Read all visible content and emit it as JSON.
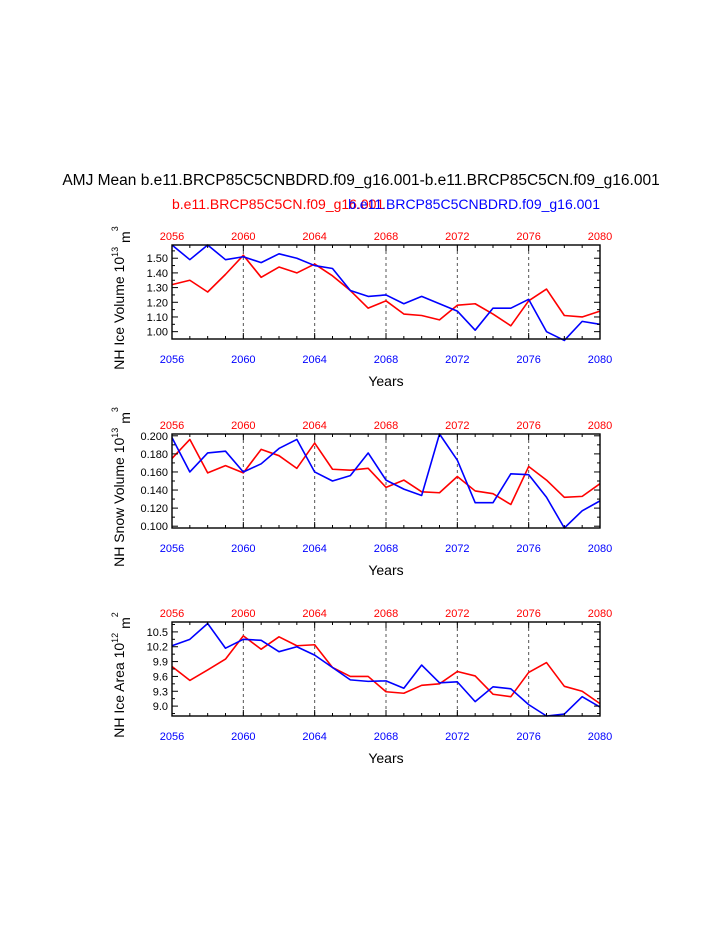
{
  "title": "AMJ Mean b.e11.BRCP85C5CNBDRD.f09_g16.001-b.e11.BRCP85C5CN.f09_g16.001",
  "legend": {
    "red_case": "b.e11.BRCP85C5CN.f09_g16.001",
    "blue_case": "b.e11.BRCP85C5CNBDRD.f09_g16.001"
  },
  "colors": {
    "red": "#ff0000",
    "blue": "#0000ff",
    "axis": "#000000",
    "grid": "#555555"
  },
  "chart_data": [
    {
      "type": "line",
      "ylabel": "NH Ice Volume 10",
      "ylabel_exp": "13",
      "ylabel_unit": "m",
      "ylabel_unit_exp": "3",
      "xlabel": "Years",
      "x": [
        2056,
        2057,
        2058,
        2059,
        2060,
        2061,
        2062,
        2063,
        2064,
        2065,
        2066,
        2067,
        2068,
        2069,
        2070,
        2071,
        2072,
        2073,
        2074,
        2075,
        2076,
        2077,
        2078,
        2079,
        2080
      ],
      "xlim": [
        2056,
        2080
      ],
      "ylim": [
        0.95,
        1.59
      ],
      "yticks": [
        1.0,
        1.1,
        1.2,
        1.3,
        1.4,
        1.5
      ],
      "ytick_labels": [
        "1.00",
        "1.10",
        "1.20",
        "1.30",
        "1.40",
        "1.50"
      ],
      "xticks": [
        2056,
        2060,
        2064,
        2068,
        2072,
        2076,
        2080
      ],
      "xtick_labels": [
        "2056",
        "2060",
        "2064",
        "2068",
        "2072",
        "2076",
        "2080"
      ],
      "grid_x": [
        2060,
        2064,
        2068,
        2072,
        2076
      ],
      "series": [
        {
          "name": "b.e11.BRCP85C5CN.f09_g16.001",
          "color": "red",
          "values": [
            1.32,
            1.35,
            1.27,
            1.39,
            1.52,
            1.37,
            1.44,
            1.4,
            1.46,
            1.38,
            1.28,
            1.16,
            1.21,
            1.12,
            1.11,
            1.08,
            1.18,
            1.19,
            1.12,
            1.04,
            1.21,
            1.29,
            1.11,
            1.1,
            1.14
          ]
        },
        {
          "name": "b.e11.BRCP85C5CNBDRD.f09_g16.001",
          "color": "blue",
          "values": [
            1.59,
            1.49,
            1.59,
            1.49,
            1.51,
            1.47,
            1.53,
            1.5,
            1.45,
            1.43,
            1.28,
            1.24,
            1.25,
            1.19,
            1.24,
            1.19,
            1.14,
            1.01,
            1.16,
            1.16,
            1.22,
            1.0,
            0.94,
            1.07,
            1.05
          ]
        }
      ]
    },
    {
      "type": "line",
      "ylabel": "NH Snow Volume 10",
      "ylabel_exp": "13",
      "ylabel_unit": "m",
      "ylabel_unit_exp": "3",
      "xlabel": "Years",
      "x": [
        2056,
        2057,
        2058,
        2059,
        2060,
        2061,
        2062,
        2063,
        2064,
        2065,
        2066,
        2067,
        2068,
        2069,
        2070,
        2071,
        2072,
        2073,
        2074,
        2075,
        2076,
        2077,
        2078,
        2079,
        2080
      ],
      "xlim": [
        2056,
        2080
      ],
      "ylim": [
        0.098,
        0.202
      ],
      "yticks": [
        0.1,
        0.12,
        0.14,
        0.16,
        0.18,
        0.2
      ],
      "ytick_labels": [
        "0.100",
        "0.120",
        "0.140",
        "0.160",
        "0.180",
        "0.200"
      ],
      "xticks": [
        2056,
        2060,
        2064,
        2068,
        2072,
        2076,
        2080
      ],
      "xtick_labels": [
        "2056",
        "2060",
        "2064",
        "2068",
        "2072",
        "2076",
        "2080"
      ],
      "grid_x": [
        2060,
        2064,
        2068,
        2072,
        2076
      ],
      "series": [
        {
          "name": "b.e11.BRCP85C5CN.f09_g16.001",
          "color": "red",
          "values": [
            0.175,
            0.196,
            0.159,
            0.167,
            0.159,
            0.185,
            0.178,
            0.164,
            0.192,
            0.163,
            0.162,
            0.164,
            0.143,
            0.151,
            0.138,
            0.137,
            0.155,
            0.139,
            0.136,
            0.124,
            0.166,
            0.151,
            0.132,
            0.133,
            0.147
          ]
        },
        {
          "name": "b.e11.BRCP85C5CNBDRD.f09_g16.001",
          "color": "blue",
          "values": [
            0.198,
            0.16,
            0.181,
            0.183,
            0.16,
            0.169,
            0.186,
            0.196,
            0.16,
            0.15,
            0.156,
            0.181,
            0.151,
            0.141,
            0.134,
            0.202,
            0.173,
            0.126,
            0.126,
            0.158,
            0.157,
            0.132,
            0.098,
            0.117,
            0.128
          ]
        }
      ]
    },
    {
      "type": "line",
      "ylabel": "NH Ice Area 10",
      "ylabel_exp": "12",
      "ylabel_unit": "m",
      "ylabel_unit_exp": "2",
      "xlabel": "Years",
      "x": [
        2056,
        2057,
        2058,
        2059,
        2060,
        2061,
        2062,
        2063,
        2064,
        2065,
        2066,
        2067,
        2068,
        2069,
        2070,
        2071,
        2072,
        2073,
        2074,
        2075,
        2076,
        2077,
        2078,
        2079,
        2080
      ],
      "xlim": [
        2056,
        2080
      ],
      "ylim": [
        8.8,
        10.7
      ],
      "yticks": [
        9.0,
        9.3,
        9.6,
        9.9,
        10.2,
        10.5
      ],
      "ytick_labels": [
        "9.0",
        "9.3",
        "9.6",
        "9.9",
        "10.2",
        "10.5"
      ],
      "xticks": [
        2056,
        2060,
        2064,
        2068,
        2072,
        2076,
        2080
      ],
      "xtick_labels": [
        "2056",
        "2060",
        "2064",
        "2068",
        "2072",
        "2076",
        "2080"
      ],
      "grid_x": [
        2060,
        2064,
        2068,
        2072,
        2076
      ],
      "series": [
        {
          "name": "b.e11.BRCP85C5CN.f09_g16.001",
          "color": "red",
          "values": [
            9.8,
            9.52,
            9.73,
            9.95,
            10.42,
            10.15,
            10.4,
            10.22,
            10.24,
            9.78,
            9.6,
            9.6,
            9.29,
            9.26,
            9.42,
            9.45,
            9.7,
            9.61,
            9.24,
            9.19,
            9.68,
            9.88,
            9.4,
            9.3,
            9.05
          ]
        },
        {
          "name": "b.e11.BRCP85C5CNBDRD.f09_g16.001",
          "color": "blue",
          "values": [
            10.22,
            10.35,
            10.67,
            10.17,
            10.35,
            10.33,
            10.1,
            10.2,
            10.03,
            9.78,
            9.53,
            9.5,
            9.51,
            9.36,
            9.83,
            9.47,
            9.49,
            9.09,
            9.39,
            9.35,
            9.03,
            8.8,
            8.84,
            9.19,
            8.98
          ]
        }
      ]
    }
  ]
}
